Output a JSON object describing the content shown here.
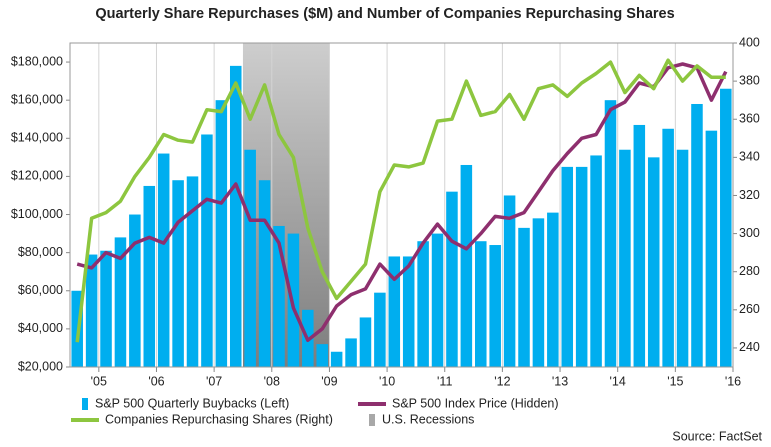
{
  "chart_data": {
    "type": "bar",
    "title": "Quarterly Share Repurchases ($M) and Number of Companies Repurchasing Shares",
    "source": "Source: FactSet",
    "x": [
      2004.5,
      2004.75,
      2005,
      2005.25,
      2005.5,
      2005.75,
      2006,
      2006.25,
      2006.5,
      2006.75,
      2007,
      2007.25,
      2007.5,
      2007.75,
      2008,
      2008.25,
      2008.5,
      2008.75,
      2009,
      2009.25,
      2009.5,
      2009.75,
      2010,
      2010.25,
      2010.5,
      2010.75,
      2011,
      2011.25,
      2011.5,
      2011.75,
      2012,
      2012.25,
      2012.5,
      2012.75,
      2013,
      2013.25,
      2013.5,
      2013.75,
      2014,
      2014.25,
      2014.5,
      2014.75,
      2015,
      2015.25,
      2015.5,
      2015.75
    ],
    "series": [
      {
        "name": "S&P 500 Quarterly Buybacks (Left)",
        "type": "bar",
        "color": "#00aeef",
        "values": [
          60000,
          79000,
          81000,
          88000,
          100000,
          115000,
          132000,
          118000,
          120000,
          142000,
          160000,
          178000,
          134000,
          118000,
          94000,
          90000,
          50000,
          32000,
          28000,
          35000,
          46000,
          59000,
          78000,
          78000,
          86000,
          90000,
          112000,
          126000,
          86000,
          84000,
          110000,
          93000,
          98000,
          101000,
          125000,
          125000,
          131000,
          160000,
          134000,
          147000,
          130000,
          145000,
          134000,
          158000,
          144000,
          166000
        ]
      },
      {
        "name": "S&P 500 Index Price (Hidden)",
        "type": "line",
        "axis": "y2",
        "color": "#8e2f6e",
        "values": [
          284,
          282,
          290,
          287,
          295,
          298,
          295,
          306,
          312,
          318,
          316,
          326,
          307,
          307,
          295,
          261,
          244,
          250,
          262,
          268,
          271,
          284,
          276,
          283,
          295,
          305,
          296,
          292,
          300,
          309,
          308,
          311,
          322,
          333,
          342,
          350,
          352,
          365,
          369,
          379,
          377,
          387,
          389,
          387,
          370,
          385
        ]
      },
      {
        "name": "Companies Repurchasing Shares (Right)",
        "type": "line",
        "axis": "y2",
        "color": "#8dc63f",
        "values": [
          243,
          308,
          311,
          317,
          330,
          340,
          352,
          349,
          348,
          365,
          364,
          379,
          360,
          378,
          352,
          340,
          303,
          280,
          266,
          275,
          284,
          322,
          336,
          335,
          337,
          359,
          360,
          380,
          362,
          364,
          373,
          360,
          376,
          378,
          372,
          379,
          384,
          390,
          374,
          383,
          376,
          391,
          380,
          388,
          382,
          382
        ]
      }
    ],
    "recessions": {
      "name": "U.S. Recessions",
      "color": "#a8a8a8",
      "ranges": [
        [
          2007.5,
          2009.0
        ]
      ]
    },
    "xlim": [
      2004.5,
      2016.0
    ],
    "xticks": [
      {
        "value": 2005,
        "label": "'05"
      },
      {
        "value": 2006,
        "label": "'06"
      },
      {
        "value": 2007,
        "label": "'07"
      },
      {
        "value": 2008,
        "label": "'08"
      },
      {
        "value": 2009,
        "label": "'09"
      },
      {
        "value": 2010,
        "label": "'10"
      },
      {
        "value": 2011,
        "label": "'11"
      },
      {
        "value": 2012,
        "label": "'12"
      },
      {
        "value": 2013,
        "label": "'13"
      },
      {
        "value": 2014,
        "label": "'14"
      },
      {
        "value": 2015,
        "label": "'15"
      },
      {
        "value": 2016,
        "label": "'16"
      }
    ],
    "ylim": [
      20000,
      190000
    ],
    "yticks": [
      {
        "value": 20000,
        "label": "$20,000"
      },
      {
        "value": 40000,
        "label": "$40,000"
      },
      {
        "value": 60000,
        "label": "$60,000"
      },
      {
        "value": 80000,
        "label": "$80,000"
      },
      {
        "value": 100000,
        "label": "$100,000"
      },
      {
        "value": 120000,
        "label": "$120,000"
      },
      {
        "value": 140000,
        "label": "$140,000"
      },
      {
        "value": 160000,
        "label": "$160,000"
      },
      {
        "value": 180000,
        "label": "$180,000"
      }
    ],
    "y2lim": [
      230,
      400
    ],
    "y2ticks": [
      240,
      260,
      280,
      300,
      320,
      340,
      360,
      380,
      400
    ],
    "grid": "x"
  }
}
